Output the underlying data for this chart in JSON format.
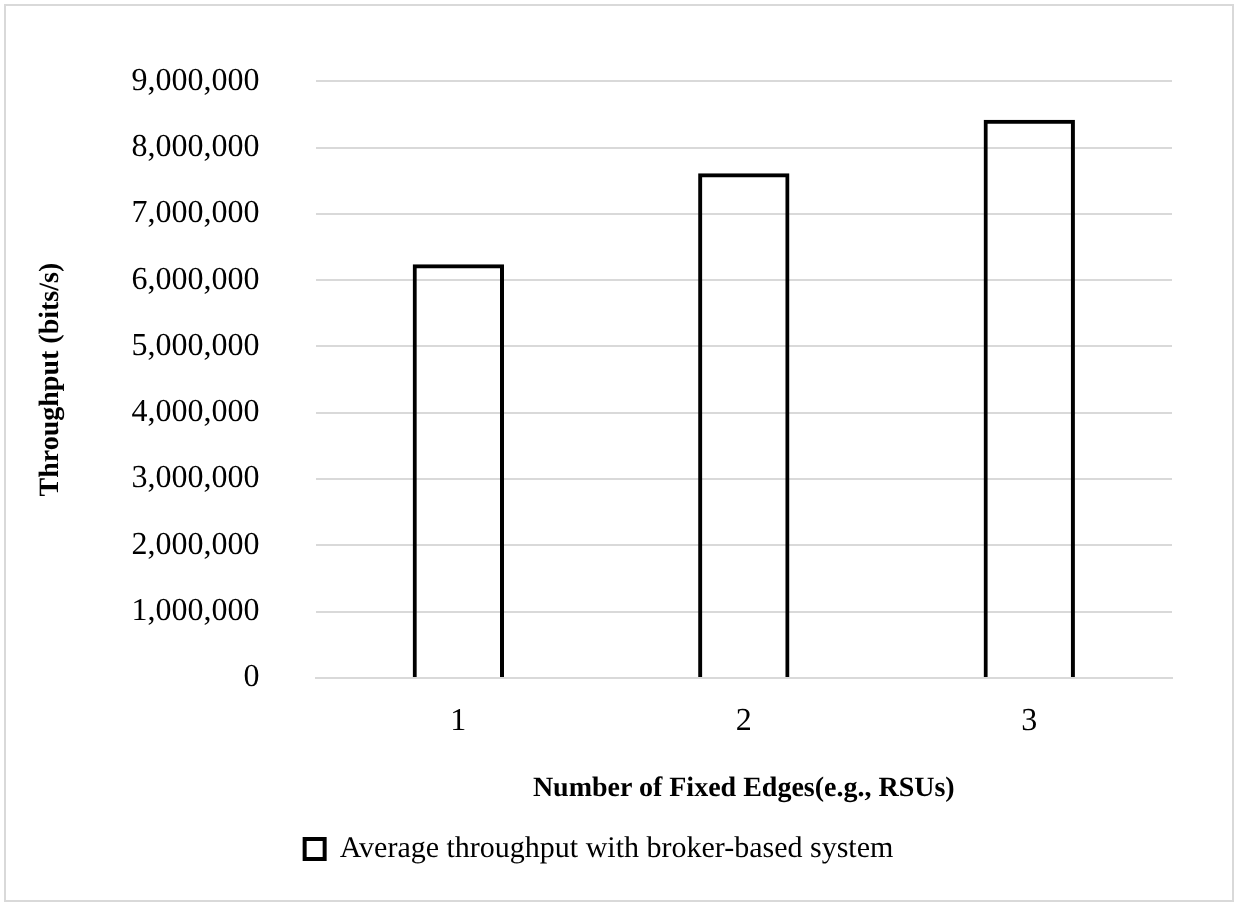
{
  "chart_data": {
    "type": "bar",
    "xlabel": "Number of Fixed Edges(e.g., RSUs)",
    "ylabel": "Throughput (bits/s)",
    "categories": [
      "1",
      "2",
      "3"
    ],
    "series": [
      {
        "name": "Average throughput with broker-based system",
        "color": "#000000",
        "values": [
          6240000,
          7610000,
          8420000
        ]
      }
    ],
    "ylim": [
      0,
      9000000
    ],
    "yticks": [
      0,
      {
        "value": 1000000,
        "label": "1,000,000"
      },
      {
        "value": 2000000,
        "label": "2,000,000"
      },
      {
        "value": 3000000,
        "label": "3,000,000"
      },
      {
        "value": 4000000,
        "label": "4,000,000"
      },
      {
        "value": 5000000,
        "label": "5,000,000"
      },
      {
        "value": 6000000,
        "label": "6,000,000"
      },
      {
        "value": 7000000,
        "label": "7,000,000"
      },
      {
        "value": 8000000,
        "label": "8,000,000"
      },
      {
        "value": 9000000,
        "label": "9,000,000"
      }
    ],
    "grid": "y",
    "legend": "bottom"
  }
}
